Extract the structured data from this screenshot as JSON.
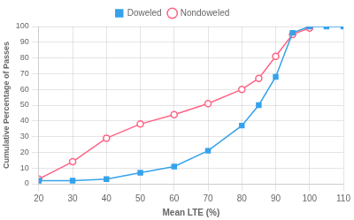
{
  "chart_data": {
    "type": "line",
    "xlabel": "Mean LTE (%)",
    "ylabel": "Cumulative Percentage of Passes",
    "series": [
      {
        "name": "Doweled",
        "marker": "square",
        "x": [
          20,
          30,
          40,
          50,
          60,
          70,
          80,
          85,
          90,
          95,
          100,
          105,
          110
        ],
        "values": [
          2,
          2,
          3,
          7,
          11,
          21,
          37,
          50,
          68,
          96,
          100,
          100,
          100
        ]
      },
      {
        "name": "Nondoweled",
        "marker": "circle",
        "x": [
          20,
          30,
          40,
          50,
          60,
          70,
          80,
          85,
          90,
          95,
          100
        ],
        "values": [
          3,
          14,
          29,
          38,
          44,
          51,
          60,
          67,
          81,
          95,
          99
        ]
      }
    ],
    "xlim": [
      20,
      110
    ],
    "ylim": [
      0,
      100
    ],
    "xticks": [
      20,
      30,
      40,
      50,
      60,
      70,
      80,
      90,
      100,
      110
    ],
    "yticks": [
      0,
      10,
      20,
      30,
      40,
      50,
      60,
      70,
      80,
      90,
      100
    ],
    "grid": true,
    "legend": "top"
  }
}
